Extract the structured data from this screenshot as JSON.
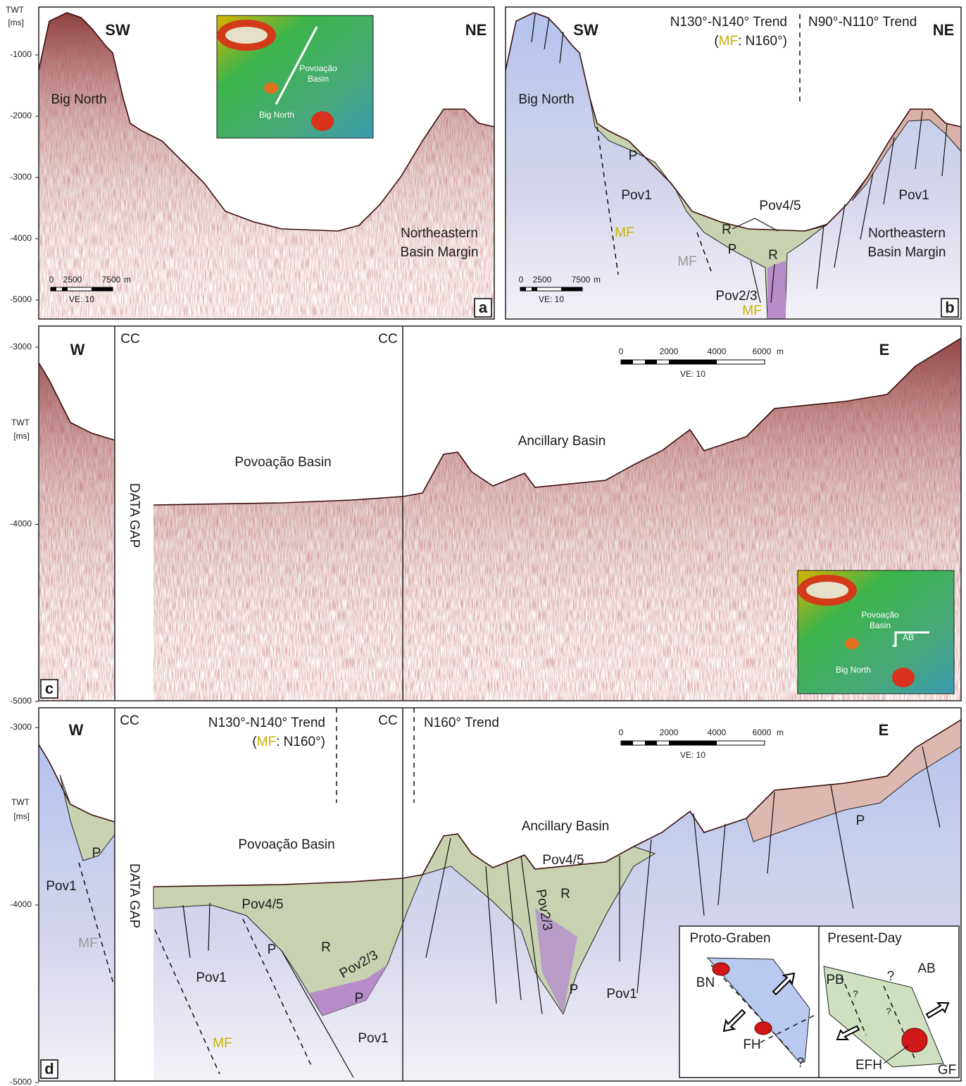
{
  "axes": {
    "title": "TWT",
    "unit": "[ms]",
    "top_ticks": [
      -1000,
      -2000,
      -3000,
      -4000,
      -5000
    ],
    "middle_ticks": [
      -3000,
      -4000,
      -5000
    ],
    "bottom_ticks": [
      -3000,
      -4000,
      -5000
    ]
  },
  "panels": [
    {
      "letter": "a",
      "labels": [
        "SW",
        "NE",
        "Big North",
        "Northeastern",
        "Basin Margin"
      ],
      "scale": {
        "ticks": [
          0,
          2500,
          7500
        ],
        "unit": "m",
        "ve": "VE: 10"
      },
      "inset": [
        "Povoação",
        "Basin",
        "Big North"
      ]
    },
    {
      "letter": "b",
      "labels": [
        "SW",
        "NE",
        "N130°-N140° Trend",
        "(",
        "MF",
        ": N160°)",
        "N90°-N110° Trend",
        "Big North",
        "P",
        "Pov1",
        "Pov1",
        "Pov4/5",
        "R",
        "P",
        "R",
        "MF",
        "MF",
        "Pov2/3",
        "MF",
        "Northeastern",
        "Basin Margin"
      ],
      "scale": {
        "ticks": [
          0,
          2500,
          7500
        ],
        "unit": "m",
        "ve": "VE: 10"
      }
    },
    {
      "letter": "c",
      "labels": [
        "W",
        "CC",
        "CC",
        "E",
        "DATA GAP",
        "Povoação Basin",
        "Ancillary Basin"
      ],
      "scale": {
        "ticks": [
          0,
          2000,
          4000,
          6000
        ],
        "unit": "m",
        "ve": "VE: 10"
      },
      "inset": [
        "Povoação",
        "Basin",
        "AB",
        "Big North"
      ]
    },
    {
      "letter": "d",
      "labels": [
        "W",
        "CC",
        "N130°-N140° Trend",
        "(",
        "MF",
        ": N160°)",
        "CC",
        "N160° Trend",
        "E",
        "Povoação Basin",
        "Ancillary Basin",
        "P",
        "Pov1",
        "MF",
        "DATA GAP",
        "Pov4/5",
        "P",
        "R",
        "Pov2/3",
        "P",
        "Pov1",
        "MF",
        "Pov1",
        "Pov4/5",
        "R",
        "Pov2/3",
        "P",
        "Pov1",
        "P"
      ],
      "scale": {
        "ticks": [
          0,
          2000,
          4000,
          6000
        ],
        "unit": "m",
        "ve": "VE: 10"
      },
      "key": {
        "left_title": "Proto-Graben",
        "right_title": "Present-Day",
        "left_labels": [
          "BN",
          "FH",
          "?"
        ],
        "right_labels": [
          "PB",
          "?",
          "?",
          "?",
          "AB",
          "EFH",
          "GF"
        ]
      }
    }
  ]
}
